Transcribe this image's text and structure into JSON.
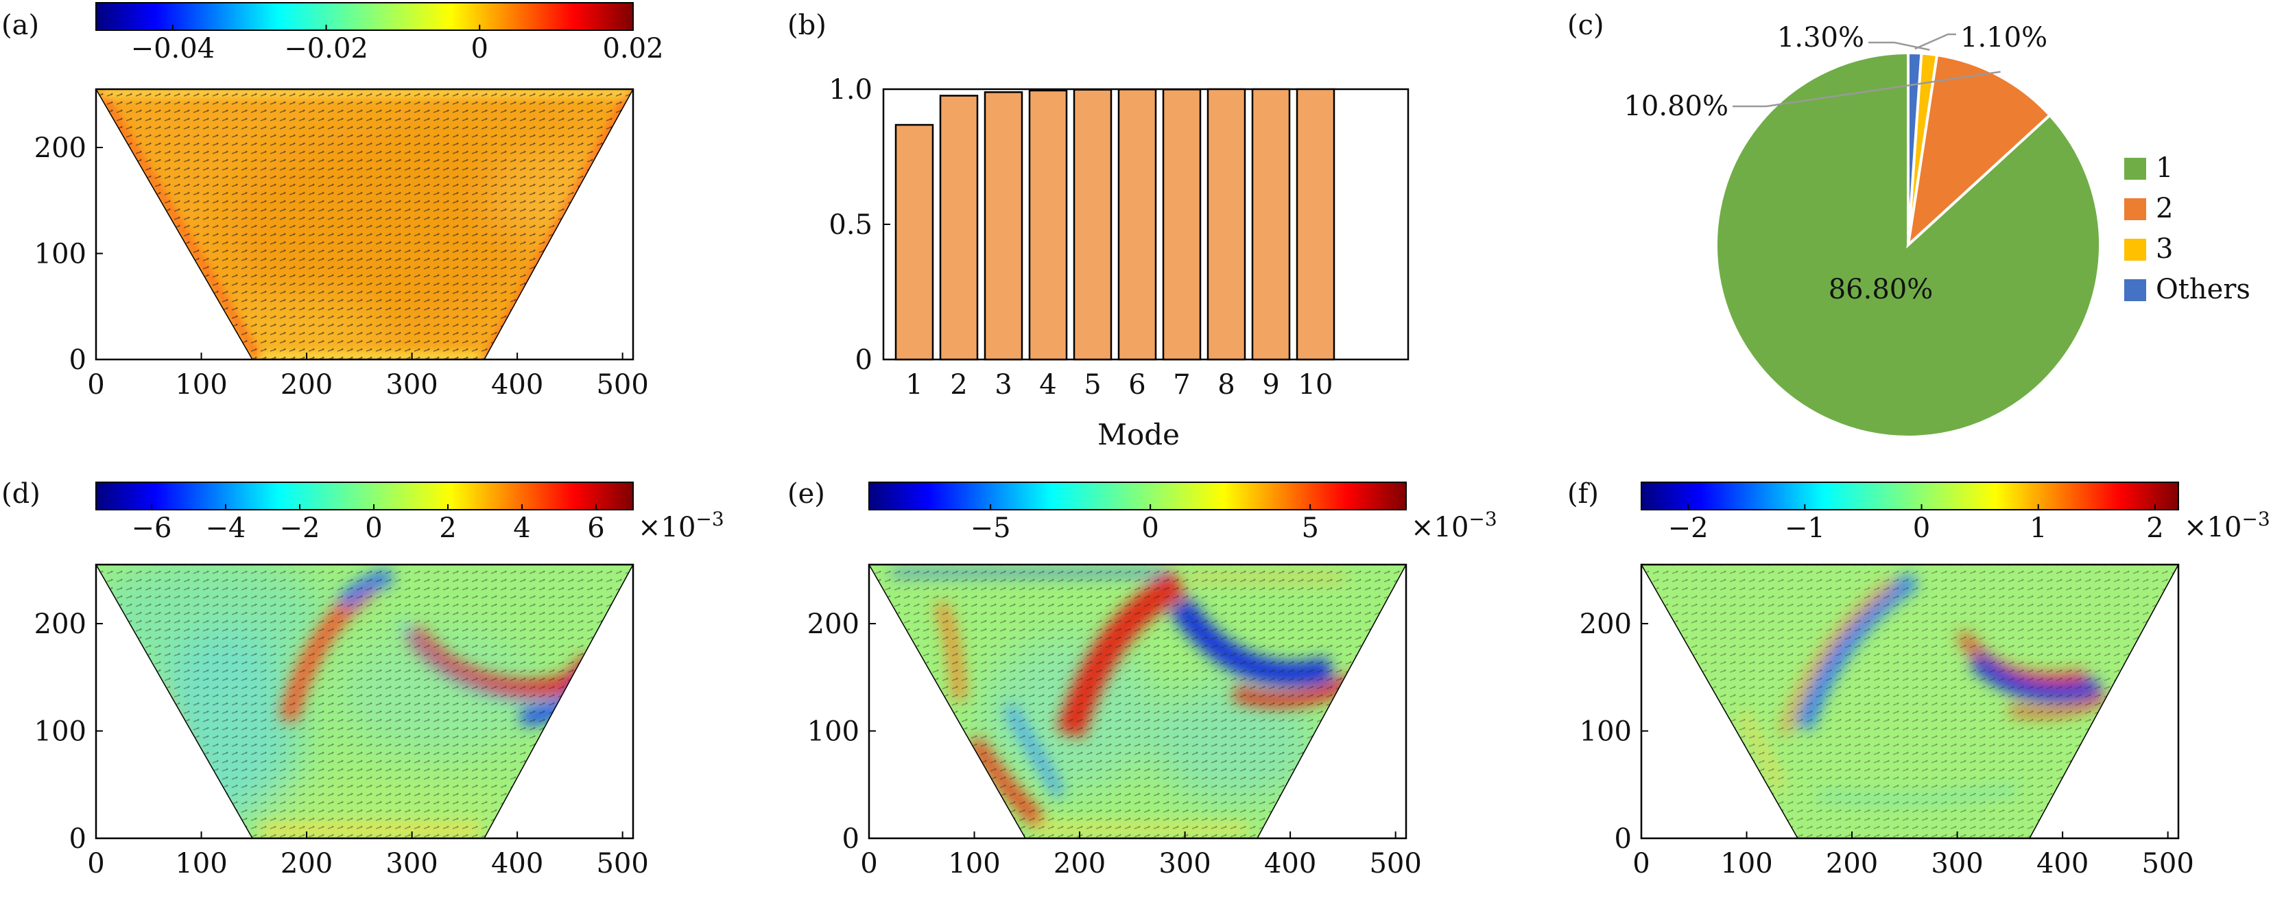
{
  "colors": {
    "jet": [
      "#00007f",
      "#0000ff",
      "#007fff",
      "#00ffff",
      "#7fff7f",
      "#ffff00",
      "#ff7f00",
      "#ff0000",
      "#7f0000"
    ],
    "bar_fill": "#f2a462",
    "bar_edge": "#000000",
    "pie": [
      "#70ad47",
      "#ed7d31",
      "#ffc000",
      "#4472c4"
    ],
    "field_bg_a": "#f5a623",
    "field_bg_mode": "#9ef07a",
    "leader": "#999999"
  },
  "panels": {
    "a": {
      "label": "(a)",
      "colorbar": {
        "vmin": -0.05,
        "vmax": 0.02,
        "ticks": [
          -0.04,
          -0.02,
          0,
          0.02
        ],
        "tick_labels": [
          "−0.04",
          "−0.02",
          "0",
          "0.02"
        ],
        "multiplier": ""
      },
      "xticks": [
        0,
        100,
        200,
        300,
        400,
        500
      ],
      "xtick_labels": [
        "0",
        "100",
        "200",
        "300",
        "400",
        "500"
      ],
      "yticks": [
        0,
        100,
        200
      ],
      "ytick_labels": [
        "0",
        "100",
        "200"
      ]
    },
    "b": {
      "label": "(b)"
    },
    "c": {
      "label": "(c)"
    },
    "d": {
      "label": "(d)",
      "colorbar": {
        "vmin": -7.5,
        "vmax": 7.0,
        "ticks": [
          -6,
          -4,
          -2,
          0,
          2,
          4,
          6
        ],
        "tick_labels": [
          "−6",
          "−4",
          "−2",
          "0",
          "2",
          "4",
          "6"
        ],
        "multiplier": "×10",
        "multiplier_exp": "−3"
      },
      "xticks": [
        0,
        100,
        200,
        300,
        400,
        500
      ],
      "xtick_labels": [
        "0",
        "100",
        "200",
        "300",
        "400",
        "500"
      ],
      "yticks": [
        0,
        100,
        200
      ],
      "ytick_labels": [
        "0",
        "100",
        "200"
      ]
    },
    "e": {
      "label": "(e)",
      "colorbar": {
        "vmin": -8.8,
        "vmax": 8.0,
        "ticks": [
          -5,
          0,
          5
        ],
        "tick_labels": [
          "−5",
          "0",
          "5"
        ],
        "multiplier": "×10",
        "multiplier_exp": "−3"
      },
      "xticks": [
        0,
        100,
        200,
        300,
        400,
        500
      ],
      "xtick_labels": [
        "0",
        "100",
        "200",
        "300",
        "400",
        "500"
      ],
      "yticks": [
        0,
        100,
        200
      ],
      "ytick_labels": [
        "0",
        "100",
        "200"
      ]
    },
    "f": {
      "label": "(f)",
      "colorbar": {
        "vmin": -2.4,
        "vmax": 2.2,
        "ticks": [
          -2,
          -1,
          0,
          1,
          2
        ],
        "tick_labels": [
          "−2",
          "−1",
          "0",
          "1",
          "2"
        ],
        "multiplier": "×10",
        "multiplier_exp": "−3"
      },
      "xticks": [
        0,
        100,
        200,
        300,
        400,
        500
      ],
      "xtick_labels": [
        "0",
        "100",
        "200",
        "300",
        "400",
        "500"
      ],
      "yticks": [
        0,
        100,
        200
      ],
      "ytick_labels": [
        "0",
        "100",
        "200"
      ]
    }
  },
  "chart_data": [
    {
      "panel": "a",
      "type": "heatmap",
      "title": "",
      "description_domain": {
        "x_range": [
          0,
          510
        ],
        "y_range": [
          0,
          255
        ],
        "trapezoid_top": [
          0,
          510
        ],
        "trapezoid_bottom": [
          148,
          365
        ]
      },
      "colorbar_range": [
        -0.05,
        0.02
      ]
    },
    {
      "panel": "b",
      "type": "bar",
      "categories": [
        "1",
        "2",
        "3",
        "4",
        "5",
        "6",
        "7",
        "8",
        "9",
        "10"
      ],
      "values": [
        0.868,
        0.976,
        0.989,
        0.995,
        0.998,
        0.999,
        0.999,
        1.0,
        1.0,
        1.0
      ],
      "xlabel": "Mode",
      "ylabel": "",
      "ylim": [
        0,
        1.0
      ],
      "yticks": [
        0,
        0.5,
        1.0
      ],
      "ytick_labels": [
        "0",
        "0.5",
        "1.0"
      ]
    },
    {
      "panel": "c",
      "type": "pie",
      "labels": [
        "1",
        "2",
        "3",
        "Others"
      ],
      "values": [
        86.8,
        10.8,
        1.3,
        1.1
      ],
      "value_labels": [
        "86.80%",
        "10.80%",
        "1.30%",
        "1.10%"
      ],
      "legend": "right"
    },
    {
      "panel": "d",
      "type": "heatmap",
      "title": "",
      "colorbar_range": [
        -7.5,
        7.0
      ],
      "multiplier": "×10^−3"
    },
    {
      "panel": "e",
      "type": "heatmap",
      "title": "",
      "colorbar_range": [
        -8.8,
        8.0
      ],
      "multiplier": "×10^−3"
    },
    {
      "panel": "f",
      "type": "heatmap",
      "title": "",
      "colorbar_range": [
        -2.4,
        2.2
      ],
      "multiplier": "×10^−3"
    }
  ]
}
